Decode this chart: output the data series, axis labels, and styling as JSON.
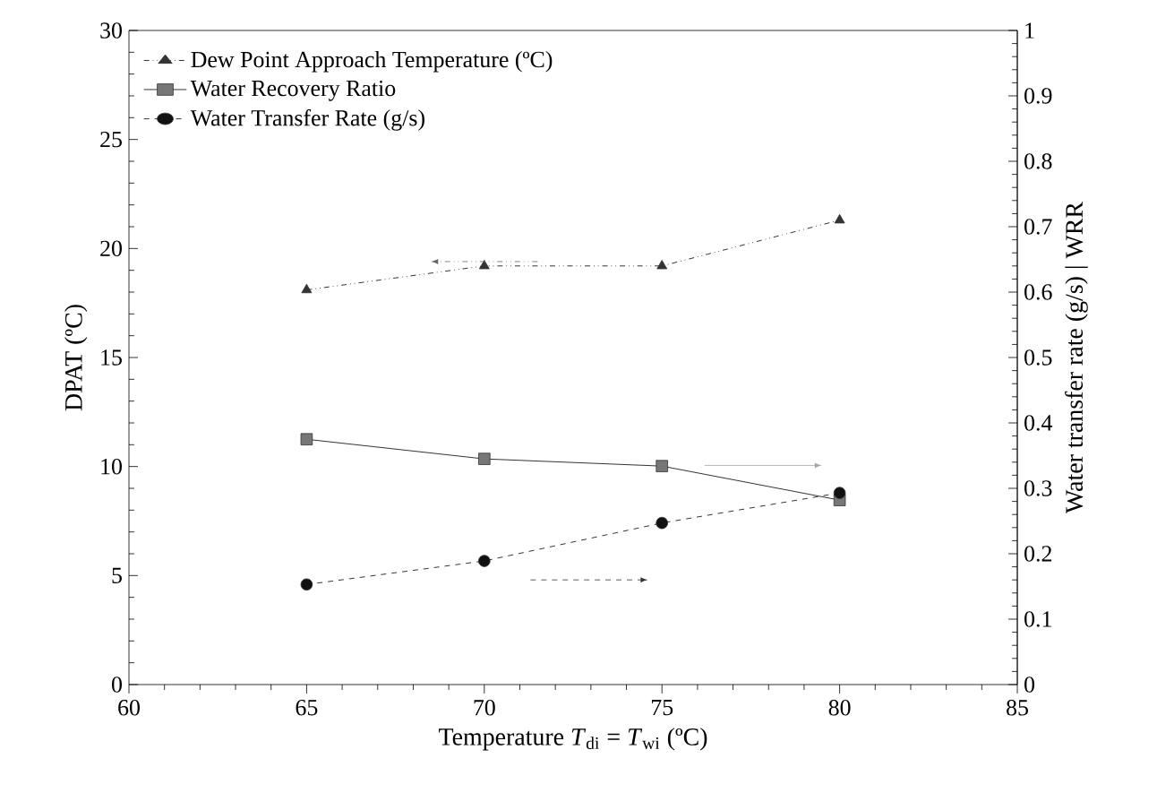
{
  "chart_data": {
    "type": "line",
    "xlabel": "Temperature *T*$_{di}$ = *T*$_{wi}$ (ºC)",
    "ylabel": "DPAT (ºC)",
    "y2label": "Water transfer rate (g/s) | WRR",
    "x": [
      65,
      70,
      75,
      80
    ],
    "series": [
      {
        "name": "Dew Point Approach Temperature (ºC)",
        "color": "#333333",
        "values": [
          18.1,
          19.2,
          19.2,
          21.3
        ],
        "marker": "triangle",
        "line_style": "dashdotdotted"
      },
      {
        "name": "Water Recovery Ratio",
        "color": "#777777",
        "values": [
          0.375,
          0.345,
          0.334,
          0.282
        ],
        "marker": "square",
        "line_style": "solid",
        "axis": "y2"
      },
      {
        "name": "Water Transfer Rate (g/s)",
        "color": "#111111",
        "values": [
          0.153,
          0.189,
          0.247,
          0.293
        ],
        "marker": "circle",
        "line_style": "dashed",
        "axis": "y2"
      }
    ],
    "xlim": [
      60,
      85
    ],
    "xticks": [
      60,
      65,
      70,
      75,
      80,
      85
    ],
    "ylim": [
      0,
      30
    ],
    "yticks": [
      0,
      5,
      10,
      15,
      20,
      25,
      30
    ],
    "y2lim": [
      0,
      1
    ],
    "y2ticks": [
      0,
      0.1,
      0.2,
      0.3,
      0.4,
      0.5,
      0.6,
      0.7,
      0.8,
      0.9,
      1
    ],
    "legend": "top left",
    "grid": false
  }
}
